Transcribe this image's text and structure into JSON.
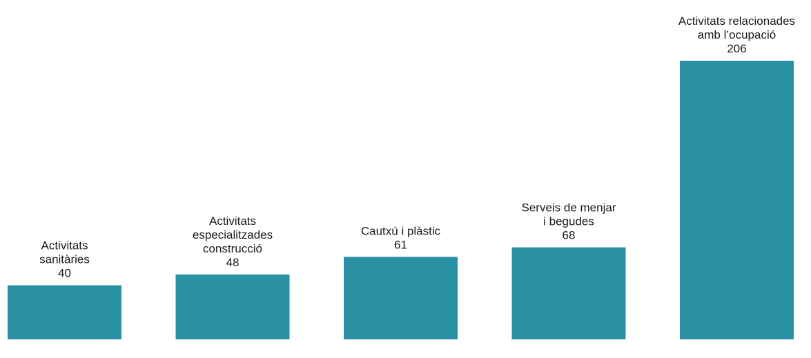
{
  "chart_data": {
    "type": "bar",
    "categories": [
      [
        "Activitats",
        "sanitàries"
      ],
      [
        "Activitats",
        "especialitzades",
        "construcció"
      ],
      [
        "Cautxú i plàstic"
      ],
      [
        "Serveis de menjar",
        "i begudes"
      ],
      [
        "Activitats relacionades",
        "amb l’ocupació"
      ]
    ],
    "values": [
      40,
      48,
      61,
      68,
      206
    ],
    "ylim": [
      0,
      206
    ],
    "grid": false,
    "legend": "none",
    "colors": {
      "bar": "#2a91a5",
      "text": "#1a1a1a"
    }
  }
}
